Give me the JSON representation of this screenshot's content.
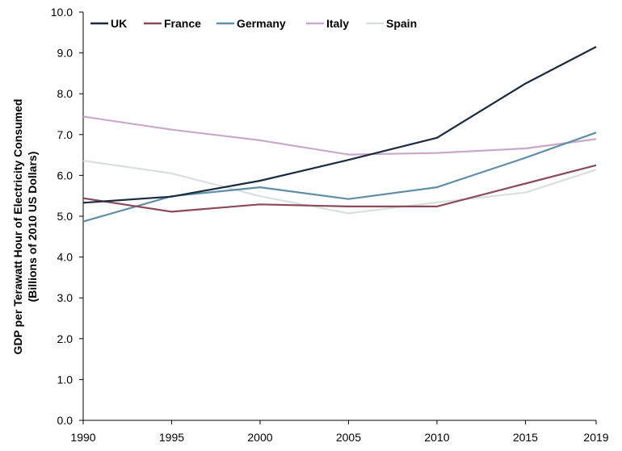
{
  "chart_data": {
    "type": "line",
    "x": [
      1990,
      1995,
      2000,
      2005,
      2010,
      2015,
      2019
    ],
    "x_tick_labels": [
      "1990",
      "1995",
      "2000",
      "2005",
      "2010",
      "2015",
      "2019"
    ],
    "ylim": [
      0,
      10
    ],
    "y_tick_labels": [
      "0.0",
      "1.0",
      "2.0",
      "3.0",
      "4.0",
      "5.0",
      "6.0",
      "7.0",
      "8.0",
      "9.0",
      "10.0"
    ],
    "ylabel_line1": "GDP per Terawatt Hour of Electricity Consumed",
    "ylabel_line2": "(Billions of 2010 US Dollars)",
    "legend_position": "top-left",
    "grid": false,
    "series": [
      {
        "name": "UK",
        "color": "#1a2a40",
        "values": [
          5.33,
          5.48,
          5.87,
          6.38,
          6.92,
          8.25,
          9.15
        ]
      },
      {
        "name": "France",
        "color": "#8b4a5a",
        "values": [
          5.44,
          5.11,
          5.29,
          5.24,
          5.24,
          5.8,
          6.25
        ]
      },
      {
        "name": "Germany",
        "color": "#5f8fa8",
        "values": [
          4.87,
          5.49,
          5.71,
          5.42,
          5.71,
          6.43,
          7.05
        ]
      },
      {
        "name": "Italy",
        "color": "#c9a9c9",
        "values": [
          7.44,
          7.12,
          6.86,
          6.51,
          6.55,
          6.66,
          6.89
        ]
      },
      {
        "name": "Spain",
        "color": "#d8e0dc",
        "values": [
          6.36,
          6.05,
          5.49,
          5.07,
          5.34,
          5.58,
          6.14
        ]
      }
    ]
  }
}
